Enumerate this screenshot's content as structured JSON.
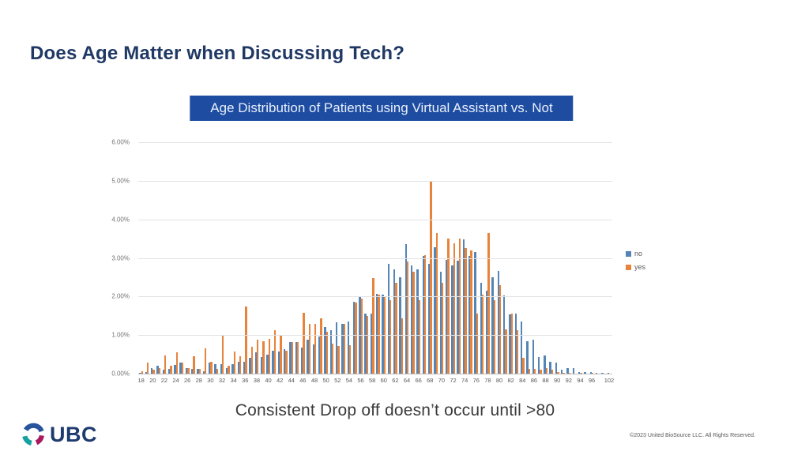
{
  "slide": {
    "title": "Does Age Matter when Discussing Tech?",
    "caption": "Consistent Drop off doesn’t occur until >80",
    "footer": {
      "logo_text": "UBC",
      "copyright": "©2023 United BioSource LLC. All Rights Reserved."
    }
  },
  "colors": {
    "title_navy": "#1f3864",
    "banner_blue": "#1e4ca1",
    "banner_text": "#e9f0fb",
    "series_no_blue": "#5585b5",
    "series_yes_orange": "#e8833c",
    "gridline_gray": "#e3e3e3",
    "axis_text_gray": "#737373",
    "logo_navy": "#1e3a6e",
    "logo_teal": "#16a0a0",
    "logo_crimson": "#a8195e"
  },
  "chart_data": {
    "type": "bar",
    "title": "Age Distribution of Patients using Virtual Assistant vs. Not",
    "xlabel": "",
    "ylabel": "",
    "ylim": [
      0,
      6
    ],
    "y_ticks": [
      "6.00%",
      "5.00%",
      "4.00%",
      "3.00%",
      "2.00%",
      "1.00%",
      "0.00%"
    ],
    "grid": true,
    "legend_position": "right",
    "values_unit": "percent",
    "x": [
      18,
      19,
      20,
      21,
      22,
      23,
      24,
      25,
      26,
      27,
      28,
      29,
      30,
      31,
      32,
      33,
      34,
      35,
      36,
      37,
      38,
      39,
      40,
      41,
      42,
      43,
      44,
      45,
      46,
      47,
      48,
      49,
      50,
      51,
      52,
      53,
      54,
      55,
      56,
      57,
      58,
      59,
      60,
      61,
      62,
      63,
      64,
      65,
      66,
      67,
      68,
      69,
      70,
      71,
      72,
      73,
      74,
      75,
      76,
      77,
      78,
      79,
      80,
      81,
      82,
      83,
      84,
      85,
      86,
      87,
      88,
      89,
      90,
      91,
      92,
      93,
      94,
      95,
      96,
      98,
      100,
      102
    ],
    "x_tick_labels": [
      18,
      20,
      22,
      24,
      26,
      28,
      30,
      32,
      34,
      36,
      38,
      40,
      42,
      44,
      46,
      48,
      50,
      52,
      54,
      56,
      58,
      60,
      62,
      64,
      66,
      68,
      70,
      72,
      74,
      76,
      78,
      80,
      82,
      84,
      86,
      88,
      90,
      92,
      94,
      96,
      102
    ],
    "series": [
      {
        "name": "no",
        "color": "#5585b5",
        "values": [
          0.03,
          0.05,
          0.14,
          0.2,
          0.1,
          0.12,
          0.22,
          0.28,
          0.15,
          0.12,
          0.12,
          0.06,
          0.28,
          0.25,
          0.25,
          0.15,
          0.25,
          0.3,
          0.3,
          0.4,
          0.55,
          0.44,
          0.5,
          0.6,
          0.57,
          0.64,
          0.82,
          0.82,
          0.67,
          0.88,
          0.76,
          0.96,
          1.2,
          1.13,
          1.33,
          1.3,
          1.35,
          1.87,
          2.0,
          1.55,
          1.55,
          2.07,
          2.05,
          2.85,
          2.7,
          2.5,
          3.35,
          2.8,
          2.7,
          3.05,
          2.85,
          3.28,
          2.65,
          2.95,
          2.8,
          2.93,
          3.48,
          3.05,
          3.15,
          2.35,
          2.15,
          2.5,
          2.66,
          2.03,
          1.54,
          1.55,
          1.35,
          0.85,
          0.88,
          0.43,
          0.47,
          0.3,
          0.28,
          0.1,
          0.15,
          0.15,
          0.05,
          0.04,
          0.05,
          0.03,
          0.02,
          0.02
        ]
      },
      {
        "name": "yes",
        "color": "#e8833c",
        "values": [
          0.06,
          0.28,
          0.1,
          0.14,
          0.48,
          0.2,
          0.55,
          0.28,
          0.15,
          0.45,
          0.12,
          0.65,
          0.3,
          0.12,
          1.0,
          0.2,
          0.58,
          0.45,
          1.74,
          0.7,
          0.88,
          0.84,
          0.9,
          1.13,
          1.0,
          0.6,
          0.82,
          0.82,
          1.58,
          1.3,
          1.3,
          1.43,
          1.08,
          0.78,
          0.71,
          1.3,
          0.74,
          1.85,
          1.95,
          1.5,
          2.48,
          2.05,
          2.0,
          1.9,
          2.35,
          1.43,
          2.9,
          2.65,
          1.9,
          3.07,
          5.0,
          3.65,
          2.35,
          3.5,
          3.38,
          3.5,
          3.25,
          3.2,
          1.55,
          2.05,
          3.65,
          1.9,
          2.3,
          1.15,
          1.56,
          1.13,
          0.4,
          0.12,
          0.12,
          0.1,
          0.15,
          0.1,
          0.05,
          0.02,
          0.02,
          0.0,
          0.02,
          0.0,
          0.02,
          0.0,
          0.0,
          0.0
        ]
      }
    ]
  }
}
